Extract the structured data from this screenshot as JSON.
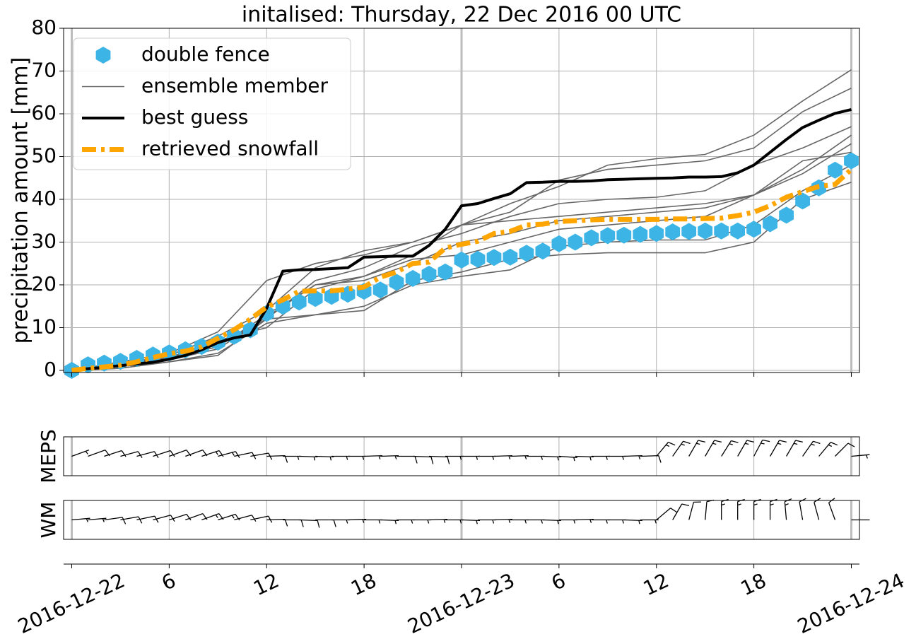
{
  "chart_data": {
    "type": "line",
    "title": "initalised: Thursday, 22 Dec 2016 00 UTC",
    "title_color": "#0b4f9e",
    "y_label": "precipitation amount [mm]",
    "grid": true,
    "legend_loc": "upper left",
    "xlim": [
      "2016-12-21 23:30",
      "2016-12-24 00:30"
    ],
    "ylim": [
      -0.5,
      80
    ],
    "yticks": [
      0,
      10,
      20,
      30,
      40,
      50,
      60,
      70,
      80
    ],
    "xticks": [
      {
        "value": "2016-12-22 00:00",
        "label": "2016-12-22"
      },
      {
        "value": "2016-12-22 06:00",
        "label": "6"
      },
      {
        "value": "2016-12-22 12:00",
        "label": "12"
      },
      {
        "value": "2016-12-22 18:00",
        "label": "18"
      },
      {
        "value": "2016-12-23 00:00",
        "label": "2016-12-23"
      },
      {
        "value": "2016-12-23 06:00",
        "label": "6"
      },
      {
        "value": "2016-12-23 12:00",
        "label": "12"
      },
      {
        "value": "2016-12-23 18:00",
        "label": "18"
      },
      {
        "value": "2016-12-24 00:00",
        "label": "2016-12-24"
      }
    ],
    "x": [
      "2016-12-22 00:00",
      "2016-12-22 01:00",
      "2016-12-22 02:00",
      "2016-12-22 03:00",
      "2016-12-22 04:00",
      "2016-12-22 05:00",
      "2016-12-22 06:00",
      "2016-12-22 07:00",
      "2016-12-22 08:00",
      "2016-12-22 09:00",
      "2016-12-22 10:00",
      "2016-12-22 11:00",
      "2016-12-22 12:00",
      "2016-12-22 13:00",
      "2016-12-22 14:00",
      "2016-12-22 15:00",
      "2016-12-22 16:00",
      "2016-12-22 17:00",
      "2016-12-22 18:00",
      "2016-12-22 19:00",
      "2016-12-22 20:00",
      "2016-12-22 21:00",
      "2016-12-22 22:00",
      "2016-12-22 23:00",
      "2016-12-23 00:00",
      "2016-12-23 01:00",
      "2016-12-23 02:00",
      "2016-12-23 03:00",
      "2016-12-23 04:00",
      "2016-12-23 05:00",
      "2016-12-23 06:00",
      "2016-12-23 07:00",
      "2016-12-23 08:00",
      "2016-12-23 09:00",
      "2016-12-23 10:00",
      "2016-12-23 11:00",
      "2016-12-23 12:00",
      "2016-12-23 13:00",
      "2016-12-23 14:00",
      "2016-12-23 15:00",
      "2016-12-23 16:00",
      "2016-12-23 17:00",
      "2016-12-23 18:00",
      "2016-12-23 19:00",
      "2016-12-23 20:00",
      "2016-12-23 21:00",
      "2016-12-23 22:00",
      "2016-12-23 23:00",
      "2016-12-24 00:00"
    ],
    "ensemble": {
      "name": "ensemble member",
      "color": "#666666",
      "x": [
        "2016-12-22 00:00",
        "2016-12-22 03:00",
        "2016-12-22 06:00",
        "2016-12-22 09:00",
        "2016-12-22 12:00",
        "2016-12-22 15:00",
        "2016-12-22 18:00",
        "2016-12-22 21:00",
        "2016-12-23 00:00",
        "2016-12-23 03:00",
        "2016-12-23 06:00",
        "2016-12-23 09:00",
        "2016-12-23 12:00",
        "2016-12-23 15:00",
        "2016-12-23 18:00",
        "2016-12-23 21:00",
        "2016-12-24 00:00"
      ],
      "members": [
        [
          0,
          2,
          4,
          9,
          21,
          25,
          27,
          30,
          34,
          39,
          43,
          48,
          49.5,
          50.5,
          55,
          63,
          70.3
        ],
        [
          0,
          1.5,
          3.5,
          8,
          14,
          24,
          28,
          30,
          34,
          37,
          44.5,
          47,
          48,
          49,
          52,
          60.5,
          66
        ],
        [
          0,
          1,
          3,
          6,
          12,
          21,
          24,
          29,
          32,
          36,
          39,
          40,
          40.5,
          42,
          48,
          52,
          57
        ],
        [
          0,
          1.5,
          3,
          5.5,
          13,
          20,
          22,
          27,
          34,
          35,
          36,
          37,
          38,
          39,
          41,
          47,
          55
        ],
        [
          0,
          1,
          2.5,
          5,
          12.5,
          20,
          21,
          25,
          30,
          32,
          35,
          36,
          37,
          38,
          41,
          46,
          53
        ],
        [
          0,
          0.5,
          2,
          4,
          11,
          13,
          14,
          21,
          23,
          26,
          27,
          27.5,
          27.5,
          27.5,
          30,
          40,
          44
        ],
        [
          0,
          1,
          3,
          7,
          10,
          19,
          22,
          26,
          27,
          30,
          33,
          34,
          35,
          36,
          41,
          49,
          51
        ],
        [
          0,
          0.5,
          2,
          3.5,
          12,
          13,
          15,
          20,
          22,
          23.5,
          29,
          30,
          30.5,
          30.5,
          34,
          42,
          48
        ]
      ]
    },
    "series": [
      {
        "name": "double fence",
        "color": "#3cb4e5",
        "marker": "hexagon",
        "linestyle": "none",
        "values": [
          0,
          1.3,
          1.7,
          2.1,
          2.8,
          3.6,
          4.1,
          4.8,
          5.6,
          6.6,
          8,
          9.5,
          13.3,
          15,
          16,
          16.8,
          17.3,
          17.8,
          18.5,
          18.8,
          20.6,
          21.5,
          22.5,
          23,
          25.8,
          26,
          26.4,
          26.5,
          27.4,
          27.9,
          29.6,
          30,
          31,
          31.5,
          31.6,
          31.8,
          32,
          32.4,
          32.5,
          32.6,
          32.6,
          32.6,
          33,
          34.3,
          36.3,
          39.6,
          42.7,
          46.8,
          49
        ]
      },
      {
        "name": "best guess",
        "color": "#000000",
        "linestyle": "solid",
        "values": [
          0,
          0.4,
          0.7,
          1.1,
          1.5,
          1.9,
          2.6,
          3.5,
          4.8,
          6.5,
          7.6,
          8.3,
          14.5,
          23.2,
          23.5,
          23.6,
          23.8,
          24,
          26.5,
          26.6,
          26.7,
          26.7,
          29.2,
          33,
          38.5,
          39,
          40.2,
          41.3,
          43.9,
          44,
          44.2,
          44.2,
          44.3,
          44.6,
          44.7,
          44.8,
          44.9,
          45,
          45.2,
          45.2,
          45.3,
          46.2,
          48,
          51,
          54,
          56.8,
          58.5,
          60.1,
          61
        ]
      },
      {
        "name": "retrieved snowfall",
        "color": "#ffa500",
        "linestyle": "dashdot",
        "values": [
          0,
          0.5,
          0.8,
          1.2,
          2,
          3,
          3.9,
          4.5,
          5.5,
          7.5,
          9.5,
          12,
          14.8,
          16.5,
          18.5,
          18.6,
          18.6,
          19,
          19.5,
          21.8,
          23,
          25,
          25.3,
          28.6,
          29.5,
          30.2,
          32,
          32.5,
          34,
          34.2,
          34.8,
          35,
          35.2,
          35.3,
          35.3,
          35.3,
          35.3,
          35.4,
          35.4,
          35.5,
          35.6,
          36.2,
          37,
          38.5,
          40.5,
          41.8,
          43,
          43.5,
          47
        ]
      }
    ],
    "wind": [
      {
        "name": "MEPS",
        "speed": [
          6,
          8,
          9,
          10,
          10,
          11,
          12,
          12,
          13,
          13,
          12,
          11,
          9,
          7,
          7,
          6,
          6,
          6,
          7,
          7,
          8,
          8,
          8,
          7,
          7,
          7,
          7,
          7,
          6,
          6,
          6,
          6,
          6,
          6,
          6,
          8,
          15,
          15,
          15,
          15,
          16,
          16,
          16,
          15,
          15,
          14,
          13,
          11,
          7
        ],
        "direction": [
          70,
          70,
          72,
          75,
          75,
          72,
          70,
          70,
          72,
          75,
          78,
          80,
          88,
          90,
          92,
          92,
          90,
          90,
          88,
          88,
          90,
          92,
          92,
          90,
          90,
          90,
          88,
          88,
          90,
          92,
          94,
          92,
          90,
          90,
          88,
          88,
          40,
          35,
          30,
          30,
          32,
          30,
          28,
          30,
          30,
          35,
          40,
          45,
          85
        ]
      },
      {
        "name": "WM",
        "speed": [
          6,
          7,
          8,
          9,
          10,
          11,
          12,
          12,
          13,
          13,
          12,
          11,
          10,
          9,
          8,
          8,
          7,
          7,
          7,
          7,
          7,
          7,
          7,
          7,
          7,
          6,
          6,
          6,
          7,
          7,
          7,
          6,
          6,
          6,
          6,
          6,
          9,
          11,
          12,
          12,
          13,
          13,
          13,
          14,
          14,
          12,
          10,
          8,
          0
        ],
        "direction": [
          85,
          85,
          82,
          80,
          78,
          75,
          72,
          70,
          70,
          72,
          75,
          78,
          88,
          90,
          92,
          90,
          90,
          88,
          90,
          92,
          90,
          90,
          88,
          90,
          92,
          90,
          88,
          90,
          90,
          92,
          90,
          88,
          90,
          90,
          92,
          90,
          50,
          30,
          15,
          5,
          0,
          0,
          0,
          0,
          355,
          350,
          345,
          340,
          90
        ]
      }
    ]
  }
}
